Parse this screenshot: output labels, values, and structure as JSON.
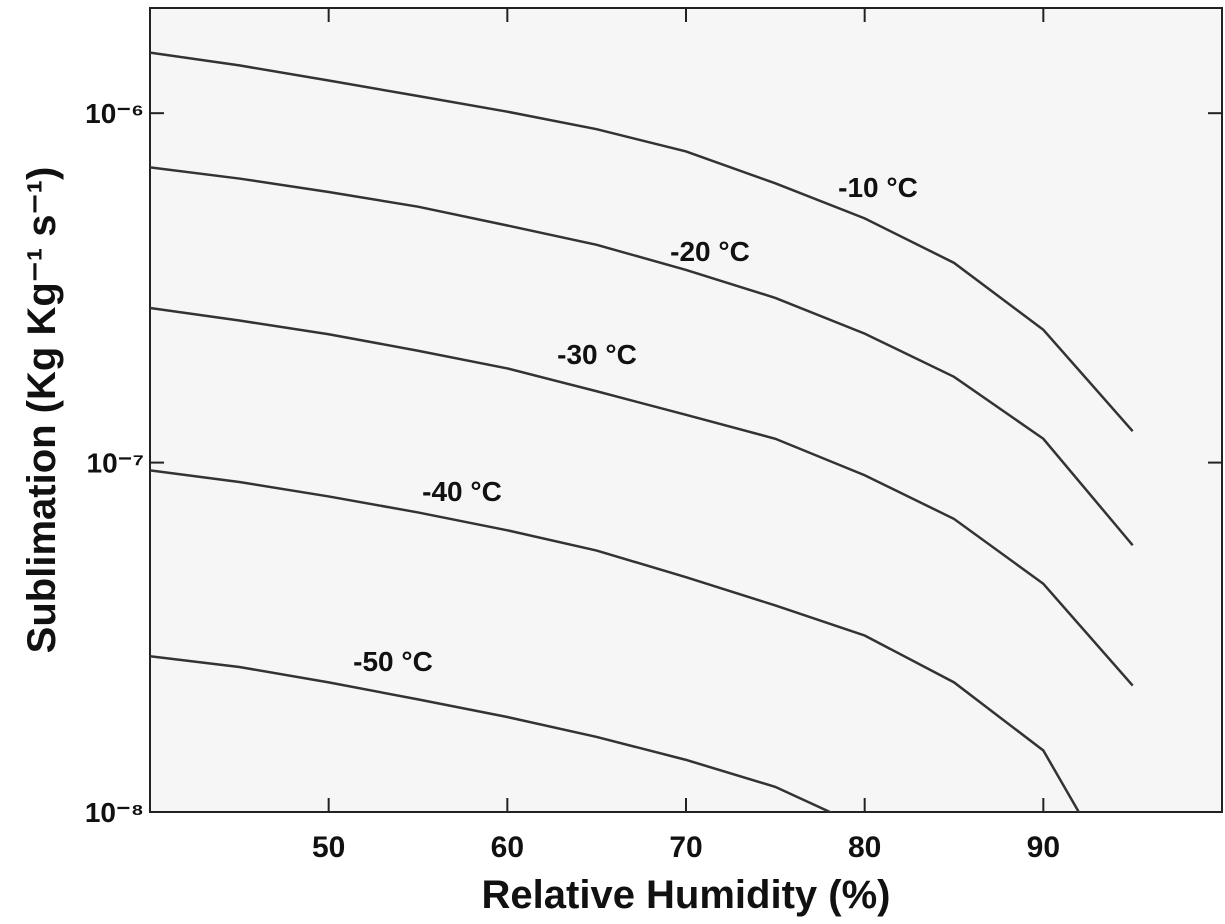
{
  "chart_data": {
    "type": "line",
    "x_label": "Relative Humidity (%)",
    "y_label": "Sublimation (Kg Kg⁻¹ s⁻¹)",
    "x": [
      40,
      45,
      50,
      55,
      60,
      65,
      70,
      75,
      80,
      85,
      90,
      95
    ],
    "series": [
      {
        "name": "-10 °C",
        "color": "#333333",
        "values": [
          1.49e-06,
          1.37e-06,
          1.24e-06,
          1.12e-06,
          1.01e-06,
          9e-07,
          7.77e-07,
          6.3e-07,
          5e-07,
          3.73e-07,
          2.4e-07,
          1.23e-07
        ]
      },
      {
        "name": "-20 °C",
        "color": "#333333",
        "values": [
          7e-07,
          6.5e-07,
          5.95e-07,
          5.4e-07,
          4.77e-07,
          4.2e-07,
          3.56e-07,
          2.96e-07,
          2.34e-07,
          1.76e-07,
          1.17e-07,
          5.8e-08
        ]
      },
      {
        "name": "-30 °C",
        "color": "#333333",
        "values": [
          2.77e-07,
          2.55e-07,
          2.33e-07,
          2.09e-07,
          1.86e-07,
          1.6e-07,
          1.37e-07,
          1.17e-07,
          9.2e-08,
          6.9e-08,
          4.5e-08,
          2.3e-08
        ]
      },
      {
        "name": "-40 °C",
        "color": "#333333",
        "values": [
          9.5e-08,
          8.8e-08,
          8e-08,
          7.2e-08,
          6.4e-08,
          5.6e-08,
          4.7e-08,
          3.9e-08,
          3.2e-08,
          2.35e-08,
          1.5e-08,
          5.4e-09
        ]
      },
      {
        "name": "-50 °C",
        "color": "#333333",
        "values": [
          2.79e-08,
          2.6e-08,
          2.35e-08,
          2.1e-08,
          1.87e-08,
          1.64e-08,
          1.41e-08,
          1.18e-08,
          9e-09,
          null,
          null,
          null
        ]
      }
    ],
    "xlim": [
      40,
      100
    ],
    "xticks": [
      50,
      60,
      70,
      80,
      90
    ],
    "ylim": [
      1e-08,
      2e-06
    ],
    "yticks": [
      {
        "value": 1e-08,
        "label": "10⁻⁸"
      },
      {
        "value": 1e-07,
        "label": "10⁻⁷"
      },
      {
        "value": 1e-06,
        "label": "10⁻⁶"
      }
    ],
    "yscale": "log",
    "grid": false
  }
}
